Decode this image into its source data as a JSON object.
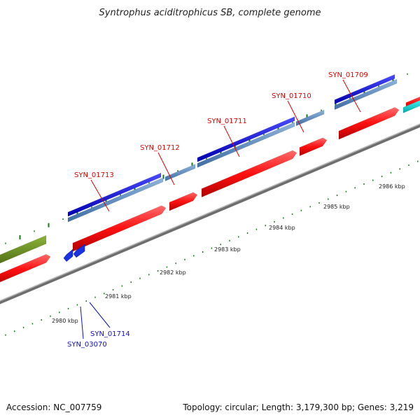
{
  "title": "Syntrophus aciditrophicus SB, complete genome",
  "footer": {
    "accession": "Accession: NC_007759",
    "summary": "Topology: circular; Length: 3,179,300 bp; Genes: 3,219"
  },
  "ruler": {
    "tick_color": "#1a7a1a",
    "labels": [
      "2980 kbp",
      "2981 kbp",
      "2982 kbp",
      "2983 kbp",
      "2984 kbp",
      "2985 kbp",
      "2986 kbp"
    ]
  },
  "gene_labels": [
    {
      "text": "SYN_01709",
      "color": "#e00000"
    },
    {
      "text": "SYN_01710",
      "color": "#e00000"
    },
    {
      "text": "SYN_01711",
      "color": "#e00000"
    },
    {
      "text": "SYN_01712",
      "color": "#e00000"
    },
    {
      "text": "SYN_01713",
      "color": "#e00000"
    },
    {
      "text": "SYN_01714",
      "color": "#1010c0"
    },
    {
      "text": "SYN_03070",
      "color": "#1010c0"
    }
  ],
  "colors": {
    "forward_gene": "#ff1010",
    "cog_blue": "#1010dd",
    "steel_blue": "#5a8ac0",
    "olive": "#6b8e23",
    "cyan": "#00cccc",
    "reverse_gene": "#1a33e0",
    "backbone": "#888888"
  }
}
